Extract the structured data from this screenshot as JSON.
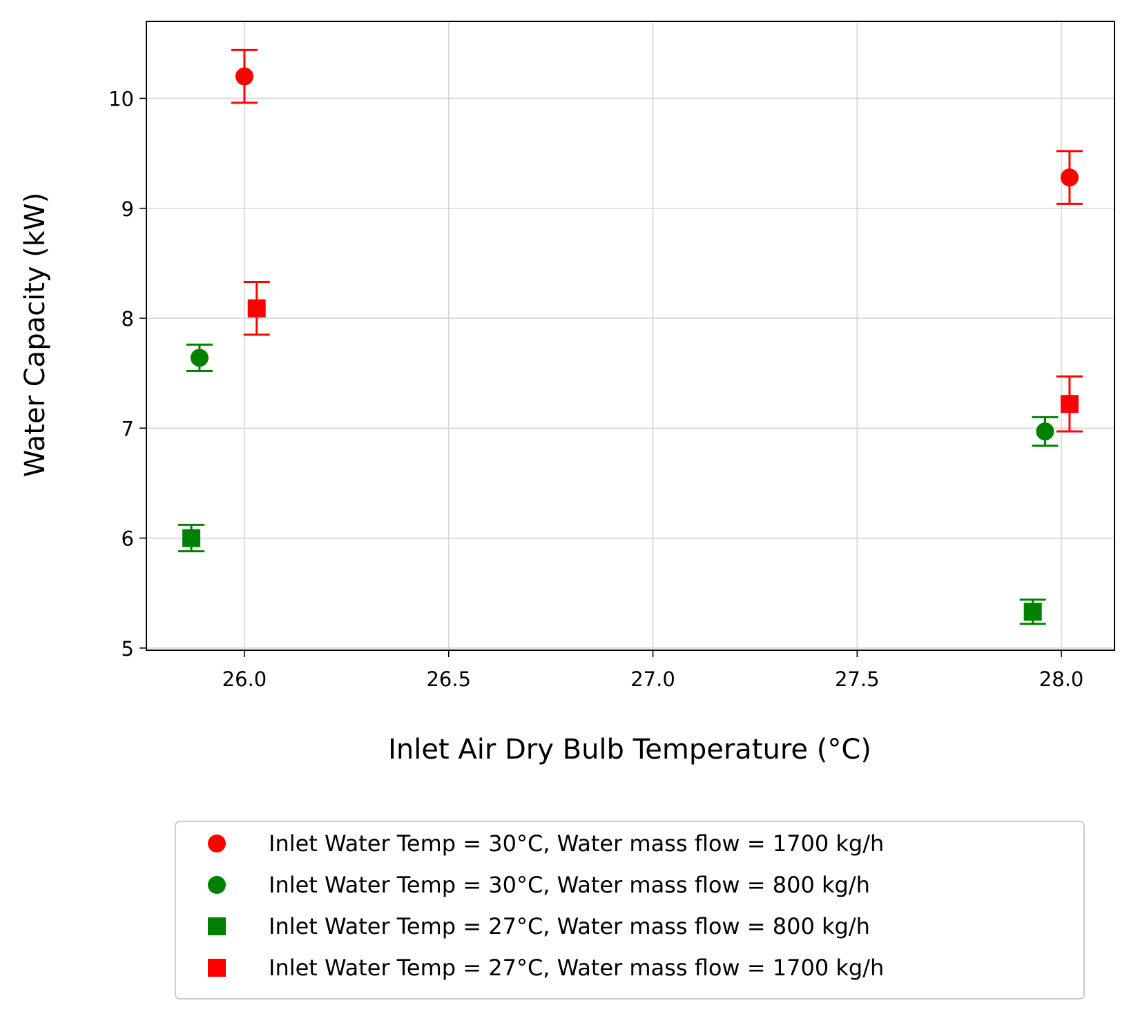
{
  "chart_data": {
    "type": "scatter",
    "xlabel": "Inlet Air Dry Bulb Temperature (°C)",
    "ylabel": "Water Capacity (kW)",
    "xlim": [
      25.76,
      28.13
    ],
    "ylim": [
      4.98,
      10.7
    ],
    "xticks": [
      26.0,
      26.5,
      27.0,
      27.5,
      28.0
    ],
    "xtick_labels": [
      "26.0",
      "26.5",
      "27.0",
      "27.5",
      "28.0"
    ],
    "yticks": [
      5,
      6,
      7,
      8,
      9,
      10
    ],
    "ytick_labels": [
      "5",
      "6",
      "7",
      "8",
      "9",
      "10"
    ],
    "grid": true,
    "legend_position": "below-plot",
    "series": [
      {
        "name": "Inlet Water Temp = 30°C, Water mass flow = 1700 kg/h",
        "marker": "circle",
        "color": "#ff0000",
        "points": [
          {
            "x": 26.0,
            "y": 10.2,
            "err": 0.24
          },
          {
            "x": 28.02,
            "y": 9.28,
            "err": 0.24
          }
        ]
      },
      {
        "name": "Inlet Water Temp = 30°C, Water mass flow = 800 kg/h",
        "marker": "circle",
        "color": "#008000",
        "points": [
          {
            "x": 25.89,
            "y": 7.64,
            "err": 0.12
          },
          {
            "x": 27.96,
            "y": 6.97,
            "err": 0.13
          }
        ]
      },
      {
        "name": "Inlet Water Temp = 27°C, Water mass flow = 800 kg/h",
        "marker": "square",
        "color": "#008000",
        "points": [
          {
            "x": 25.87,
            "y": 6.0,
            "err": 0.12
          },
          {
            "x": 27.93,
            "y": 5.33,
            "err": 0.11
          }
        ]
      },
      {
        "name": "Inlet Water Temp = 27°C, Water mass flow = 1700 kg/h",
        "marker": "square",
        "color": "#ff0000",
        "points": [
          {
            "x": 26.03,
            "y": 8.09,
            "err": 0.24
          },
          {
            "x": 28.02,
            "y": 7.22,
            "err": 0.25
          }
        ]
      }
    ]
  }
}
